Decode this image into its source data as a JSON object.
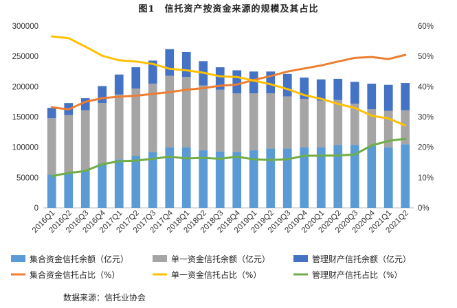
{
  "title": "图1　信托资产按资金来源的规模及其占比",
  "source": "数据来源：信托业协会",
  "chart_data": {
    "type": "bar",
    "stacked": true,
    "categories": [
      "2016Q1",
      "2016Q2",
      "2016Q3",
      "2016Q4",
      "2017Q1",
      "2017Q2",
      "2017Q3",
      "2017Q4",
      "2018Q1",
      "2018Q2",
      "2018Q3",
      "2018Q4",
      "2019Q1",
      "2019Q2",
      "2019Q3",
      "2019Q4",
      "2020Q1",
      "2020Q2",
      "2020Q3",
      "2020Q4",
      "2021Q1",
      "2021Q2"
    ],
    "ylim_left": [
      0,
      300000
    ],
    "yticks_left": [
      "0",
      "50000",
      "100000",
      "150000",
      "200000",
      "250000",
      "300000"
    ],
    "ylim_right": [
      0,
      60
    ],
    "yticks_right": [
      "0%",
      "10%",
      "20%",
      "30%",
      "40%",
      "50%",
      "60%"
    ],
    "grid": false,
    "legend_position": "bottom",
    "bar_series": [
      {
        "name": "集合资金信托余额（亿元）",
        "color": "#5B9BD5",
        "values": [
          55000,
          57000,
          62000,
          73000,
          80000,
          86000,
          92000,
          100000,
          100000,
          95000,
          93000,
          92000,
          95000,
          98000,
          98000,
          100000,
          100000,
          104000,
          104000,
          102000,
          100000,
          105000
        ]
      },
      {
        "name": "单一资金信托余额（亿元）",
        "color": "#A5A5A5",
        "values": [
          93000,
          96000,
          99000,
          100000,
          107000,
          111000,
          113000,
          118000,
          116000,
          107000,
          102000,
          97000,
          94000,
          91000,
          86000,
          80000,
          77000,
          74000,
          68000,
          61000,
          60000,
          56000
        ]
      },
      {
        "name": "管理财产信托余额（亿元）",
        "color": "#4472C4",
        "values": [
          17000,
          20000,
          20000,
          28000,
          33000,
          35000,
          38000,
          44000,
          41000,
          40000,
          37000,
          38000,
          36000,
          36000,
          37000,
          35000,
          35000,
          35000,
          36000,
          42000,
          43000,
          45000
        ]
      }
    ],
    "line_series": [
      {
        "name": "集合资金信托占比（%）",
        "color": "#ED7D31",
        "values": [
          33.2,
          32.5,
          35,
          36.2,
          36.7,
          37,
          37.6,
          38.2,
          39,
          39.5,
          40.3,
          40.7,
          42.2,
          43.5,
          45,
          46,
          47,
          48.3,
          49.5,
          49.8,
          49.1,
          50.5
        ]
      },
      {
        "name": "单一资金信托占比（%）",
        "color": "#FFC000",
        "values": [
          56.6,
          56,
          53.2,
          50.2,
          48.7,
          48.3,
          47.5,
          45.9,
          45.4,
          44.6,
          43.4,
          43.2,
          42,
          40.8,
          39.2,
          37.2,
          36,
          34.3,
          33,
          30.4,
          29.5,
          27.2
        ]
      },
      {
        "name": "管理财产信托占比（%）",
        "color": "#70AD47",
        "values": [
          10.5,
          11.5,
          12.2,
          14.4,
          15.4,
          15.6,
          16.2,
          16.9,
          16.3,
          16.5,
          16.2,
          16.9,
          16,
          15.8,
          16,
          17.2,
          17.2,
          17.3,
          17.6,
          20.6,
          22.1,
          22.8
        ]
      }
    ]
  }
}
